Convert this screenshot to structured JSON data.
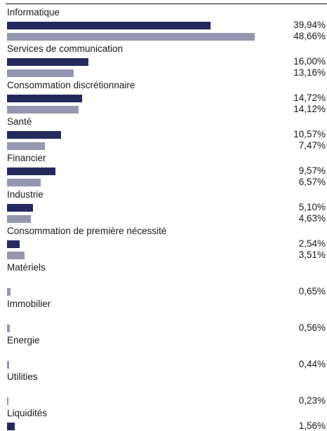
{
  "chart_data": {
    "type": "bar",
    "orientation": "horizontal",
    "categories": [
      "Informatique",
      "Services de communication",
      "Consommation discrétionnaire",
      "Santé",
      "Financier",
      "Industrie",
      "Consommation de première nécessité",
      "Matériels",
      "Immobilier",
      "Energie",
      "Utilities",
      "Liquidités"
    ],
    "series": [
      {
        "values": [
          39.94,
          16.0,
          14.72,
          10.57,
          9.57,
          5.1,
          2.54,
          null,
          null,
          null,
          null,
          1.56
        ],
        "labels": [
          "39,94%",
          "16,00%",
          "14,72%",
          "10,57%",
          "9,57%",
          "5,10%",
          "2,54%",
          "",
          "",
          "",
          "",
          "1,56%"
        ],
        "color": "#252a5c"
      },
      {
        "values": [
          48.66,
          13.16,
          14.12,
          7.47,
          6.57,
          4.63,
          3.51,
          0.65,
          0.56,
          0.44,
          0.23,
          null
        ],
        "labels": [
          "48,66%",
          "13,16%",
          "14,12%",
          "7,47%",
          "6,57%",
          "4,63%",
          "3,51%",
          "0,65%",
          "0,56%",
          "0,44%",
          "0,23%",
          ""
        ],
        "color": "#9596af"
      }
    ],
    "value_max": 48.66
  }
}
